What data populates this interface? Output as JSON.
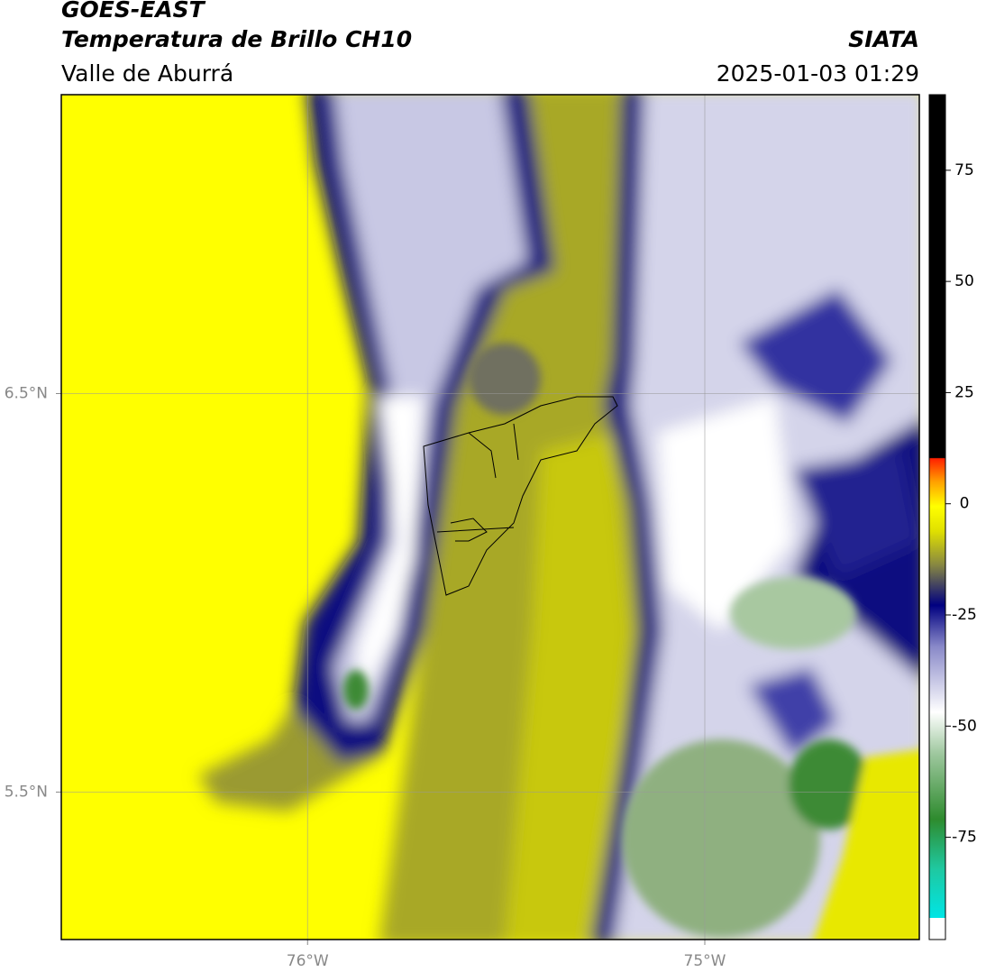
{
  "header": {
    "title": "GOES-EAST",
    "subtitle": "Temperatura de Brillo CH10",
    "source": "SIATA",
    "region": "Valle de Aburrá",
    "timestamp": "2025-01-03 01:29"
  },
  "map": {
    "xlim": [
      -76.62,
      -74.46
    ],
    "ylim": [
      5.13,
      7.25
    ],
    "xticks": [
      {
        "value": -76,
        "label": "76°W"
      },
      {
        "value": -75,
        "label": "75°W"
      }
    ],
    "yticks": [
      {
        "value": 6.5,
        "label": "6.5°N"
      },
      {
        "value": 5.5,
        "label": "5.5°N"
      }
    ]
  },
  "colorbar": {
    "lim": [
      -98,
      92
    ],
    "ticks": [
      75,
      50,
      25,
      0,
      -25,
      -50,
      -75
    ]
  }
}
